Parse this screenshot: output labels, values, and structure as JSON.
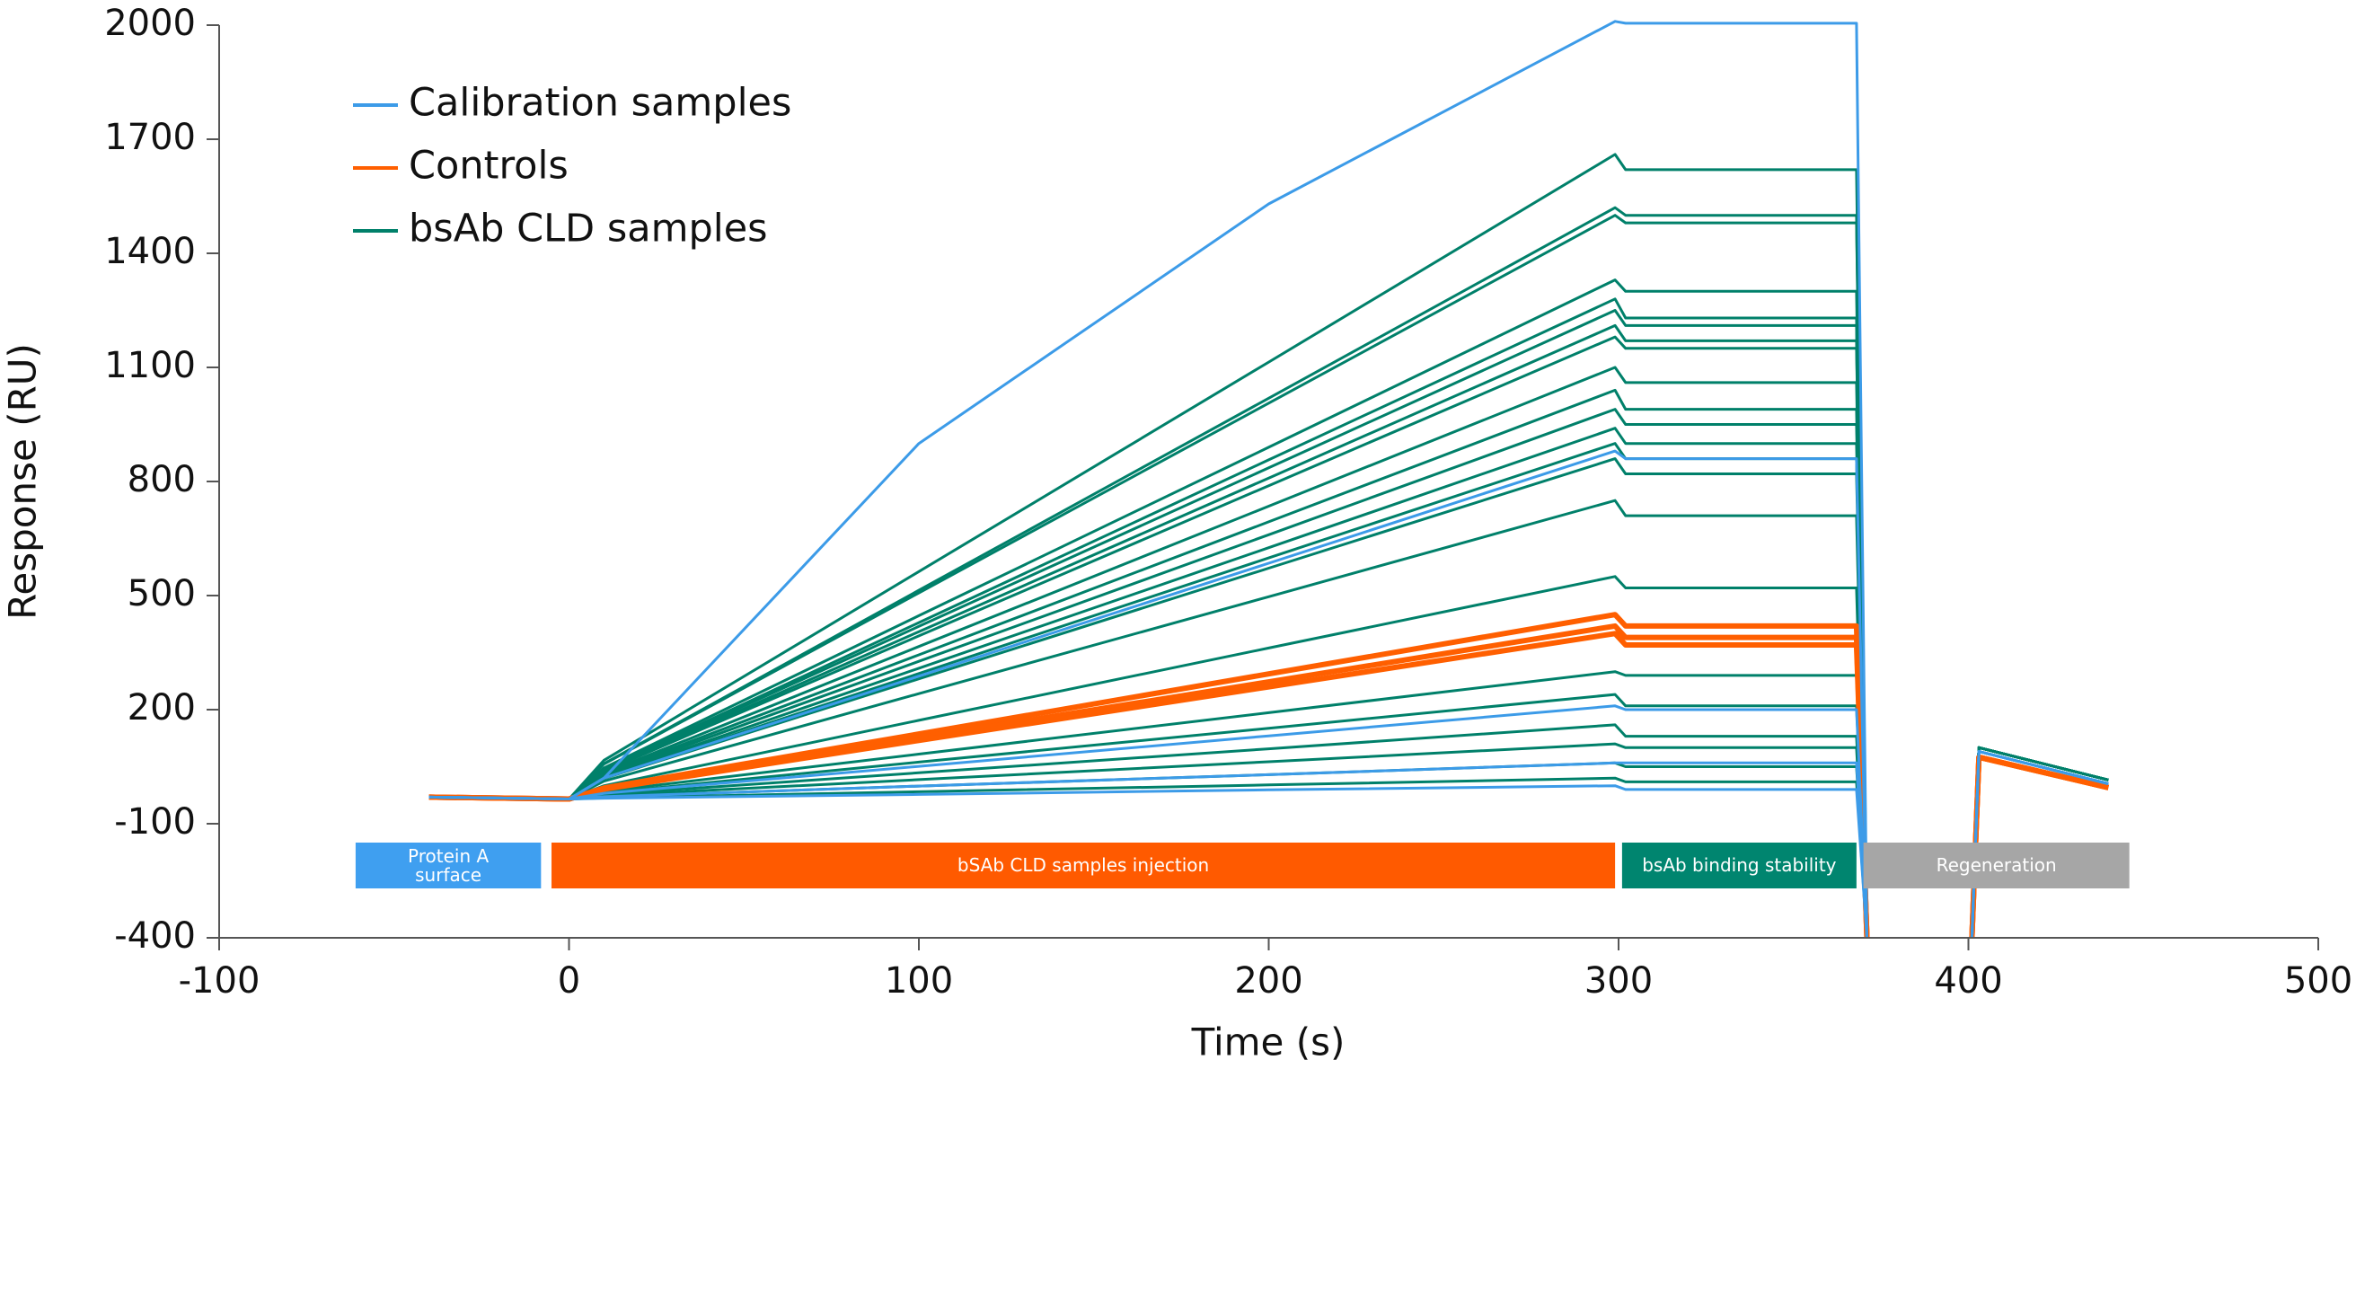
{
  "chart_data": {
    "type": "line",
    "xlabel": "Time (s)",
    "ylabel": "Response (RU)",
    "xlim": [
      -100,
      500
    ],
    "xticks": [
      -100,
      0,
      100,
      200,
      300,
      400,
      500
    ],
    "ylim": [
      -400,
      2000
    ],
    "yticks": [
      -400,
      -100,
      200,
      500,
      800,
      1100,
      1400,
      1700,
      2000
    ],
    "grid": false,
    "legend": "upper left",
    "x": [
      -40,
      0,
      10,
      100,
      200,
      299,
      302,
      368,
      371,
      385,
      401,
      403,
      440
    ],
    "series": [
      {
        "name": "Calibration samples",
        "color": "#3c9be8",
        "values": [
          [
            -30,
            -35,
            20,
            900,
            1530,
            2010,
            2005,
            2005,
            -400,
            null,
            -400,
            90,
            5
          ],
          [
            -30,
            -35,
            20,
            288,
            585,
            880,
            860,
            860,
            -400,
            null,
            -400,
            90,
            5
          ],
          [
            -30,
            -35,
            -20,
            51,
            131,
            210,
            200,
            200,
            -400,
            null,
            -400,
            90,
            5
          ],
          [
            -30,
            -35,
            -29,
            -1,
            29,
            60,
            60,
            60,
            -400,
            null,
            -400,
            90,
            5
          ],
          [
            -30,
            -35,
            -33,
            -23,
            -11,
            0,
            -10,
            -10,
            -400,
            null,
            -400,
            90,
            5
          ]
        ]
      },
      {
        "name": "Controls",
        "color": "#ff5f00",
        "values": [
          [
            -30,
            -35,
            -6,
            136,
            294,
            450,
            420,
            420,
            -400,
            null,
            -400,
            75,
            -5
          ],
          [
            -30,
            -35,
            -8,
            126,
            273,
            420,
            390,
            390,
            -400,
            null,
            -400,
            75,
            -5
          ],
          [
            -30,
            -35,
            -9,
            119,
            260,
            400,
            370,
            370,
            -400,
            null,
            -400,
            75,
            -5
          ]
        ]
      },
      {
        "name": "bsAb CLD samples",
        "color": "#00806a",
        "values": [
          [
            -30,
            -35,
            67,
            563,
            1114,
            1660,
            1620,
            1620,
            -400,
            null,
            -400,
            100,
            15
          ],
          [
            -30,
            -35,
            58,
            514,
            1019,
            1520,
            1500,
            1500,
            -400,
            null,
            -400,
            100,
            15
          ],
          [
            -30,
            -35,
            57,
            507,
            1006,
            1500,
            1480,
            1480,
            -400,
            null,
            -400,
            100,
            15
          ],
          [
            -30,
            -35,
            47,
            447,
            890,
            1330,
            1300,
            1300,
            -400,
            null,
            -400,
            100,
            15
          ],
          [
            -30,
            -35,
            44,
            429,
            857,
            1280,
            1230,
            1230,
            -400,
            null,
            -400,
            100,
            15
          ],
          [
            -30,
            -35,
            42,
            419,
            836,
            1250,
            1210,
            1210,
            -400,
            null,
            -400,
            100,
            15
          ],
          [
            -30,
            -35,
            40,
            405,
            809,
            1210,
            1170,
            1170,
            -400,
            null,
            -400,
            100,
            15
          ],
          [
            -30,
            -35,
            38,
            394,
            789,
            1180,
            1150,
            1150,
            -400,
            null,
            -400,
            100,
            15
          ],
          [
            -30,
            -35,
            33,
            366,
            735,
            1100,
            1060,
            1060,
            -400,
            null,
            -400,
            100,
            15
          ],
          [
            -30,
            -35,
            30,
            344,
            694,
            1040,
            990,
            990,
            -400,
            null,
            -400,
            100,
            15
          ],
          [
            -30,
            -35,
            27,
            327,
            660,
            990,
            950,
            950,
            -400,
            null,
            -400,
            100,
            15
          ],
          [
            -30,
            -35,
            24,
            309,
            626,
            940,
            900,
            900,
            -400,
            null,
            -400,
            100,
            15
          ],
          [
            -30,
            -35,
            21,
            295,
            599,
            900,
            860,
            860,
            -400,
            null,
            -400,
            100,
            15
          ],
          [
            -30,
            -35,
            19,
            281,
            572,
            860,
            820,
            820,
            -400,
            null,
            -400,
            100,
            15
          ],
          [
            -30,
            -35,
            12,
            242,
            497,
            750,
            710,
            710,
            -400,
            null,
            -400,
            100,
            15
          ],
          [
            -30,
            -35,
            0,
            172,
            362,
            550,
            520,
            520,
            -400,
            null,
            -400,
            100,
            15
          ],
          [
            -30,
            -35,
            -15,
            83,
            192,
            300,
            290,
            290,
            -400,
            null,
            -400,
            100,
            15
          ],
          [
            -30,
            -35,
            -19,
            62,
            151,
            240,
            210,
            210,
            -400,
            null,
            -400,
            100,
            15
          ],
          [
            -30,
            -35,
            -23,
            34,
            97,
            160,
            130,
            130,
            -400,
            null,
            -400,
            100,
            15
          ],
          [
            -30,
            -35,
            -26,
            16,
            63,
            110,
            100,
            100,
            -400,
            null,
            -400,
            100,
            15
          ],
          [
            -30,
            -35,
            -29,
            -1,
            29,
            60,
            50,
            50,
            -400,
            null,
            -400,
            100,
            15
          ],
          [
            -30,
            -35,
            -32,
            -16,
            2,
            20,
            10,
            10,
            -400,
            null,
            -400,
            100,
            15
          ]
        ]
      }
    ],
    "phases": [
      {
        "label": "Protein A surface",
        "start": -61,
        "end": -8,
        "color": "#3f9ff0"
      },
      {
        "label": "bSAb CLD samples injection",
        "start": -5,
        "end": 299,
        "color": "#ff5a00"
      },
      {
        "label": "bsAb binding stability",
        "start": 301,
        "end": 368,
        "color": "#00856f"
      },
      {
        "label": "Regeneration",
        "start": 370,
        "end": 446,
        "color": "#a6a6a6"
      }
    ]
  }
}
